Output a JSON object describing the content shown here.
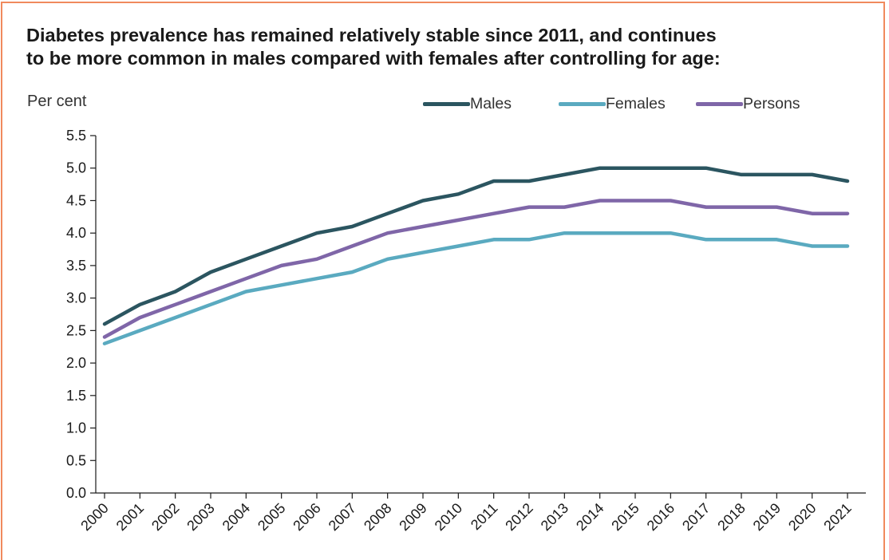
{
  "chart_data": {
    "type": "line",
    "title": "Diabetes prevalence has remained relatively stable since 2011, and continues to be more common in males compared with females after controlling for age:",
    "title_lines": [
      "Diabetes prevalence has remained relatively stable since 2011, and continues",
      "to be more common in males compared with females after controlling for age:"
    ],
    "ylabel": "Per cent",
    "xlabel": "",
    "ylim": [
      0,
      5.5
    ],
    "y_ticks": [
      "0.0",
      "0.5",
      "1.0",
      "1.5",
      "2.0",
      "2.5",
      "3.0",
      "3.5",
      "4.0",
      "4.5",
      "5.0",
      "5.5"
    ],
    "x": [
      "2000",
      "2001",
      "2002",
      "2003",
      "2004",
      "2005",
      "2006",
      "2007",
      "2008",
      "2009",
      "2010",
      "2011",
      "2012",
      "2013",
      "2014",
      "2015",
      "2016",
      "2017",
      "2018",
      "2019",
      "2020",
      "2021"
    ],
    "grid": false,
    "legend_position": "top",
    "series": [
      {
        "name": "Males",
        "color": "#2b5560",
        "values": [
          2.6,
          2.9,
          3.1,
          3.4,
          3.6,
          3.8,
          4.0,
          4.1,
          4.3,
          4.5,
          4.6,
          4.8,
          4.8,
          4.9,
          5.0,
          5.0,
          5.0,
          5.0,
          4.9,
          4.9,
          4.9,
          4.8
        ]
      },
      {
        "name": "Females",
        "color": "#5aaac0",
        "values": [
          2.3,
          2.5,
          2.7,
          2.9,
          3.1,
          3.2,
          3.3,
          3.4,
          3.6,
          3.7,
          3.8,
          3.9,
          3.9,
          4.0,
          4.0,
          4.0,
          4.0,
          3.9,
          3.9,
          3.9,
          3.8,
          3.8
        ]
      },
      {
        "name": "Persons",
        "color": "#7f66a8",
        "values": [
          2.4,
          2.7,
          2.9,
          3.1,
          3.3,
          3.5,
          3.6,
          3.8,
          4.0,
          4.1,
          4.2,
          4.3,
          4.4,
          4.4,
          4.5,
          4.5,
          4.5,
          4.4,
          4.4,
          4.4,
          4.3,
          4.3
        ]
      }
    ]
  }
}
